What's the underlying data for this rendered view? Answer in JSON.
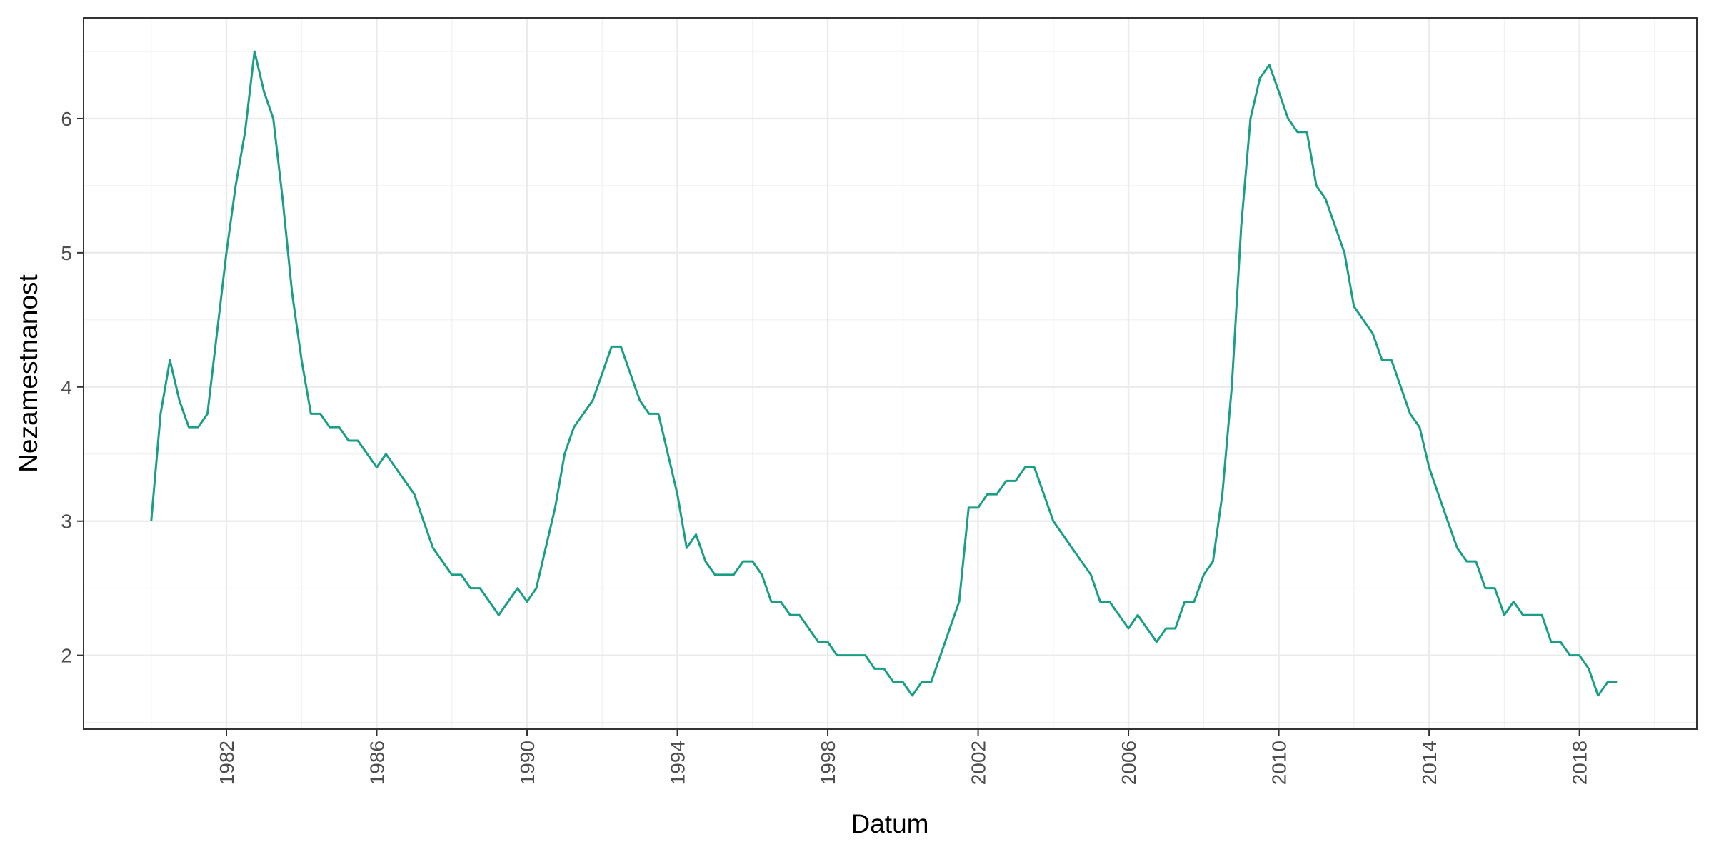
{
  "chart_data": {
    "type": "line",
    "xlabel": "Datum",
    "ylabel": "Nezamestnanost",
    "x_tick_labels": [
      "1982",
      "1986",
      "1990",
      "1994",
      "1998",
      "2002",
      "2006",
      "2010",
      "2014",
      "2018"
    ],
    "y_tick_labels": [
      "2",
      "3",
      "4",
      "5",
      "6"
    ],
    "xlim": [
      "1978-03-15",
      "2021-02-15"
    ],
    "ylim": [
      1.45,
      6.75
    ],
    "grid": true,
    "series": [
      {
        "color": "#1a9e85",
        "x": [
          "1980-01-01",
          "1980-04-01",
          "1980-07-01",
          "1980-10-01",
          "1981-01-01",
          "1981-04-01",
          "1981-07-01",
          "1981-10-01",
          "1982-01-01",
          "1982-04-01",
          "1982-07-01",
          "1982-10-01",
          "1983-01-01",
          "1983-04-01",
          "1983-07-01",
          "1983-10-01",
          "1984-01-01",
          "1984-04-01",
          "1984-07-01",
          "1984-10-01",
          "1985-01-01",
          "1985-04-01",
          "1985-07-01",
          "1985-10-01",
          "1986-01-01",
          "1986-04-01",
          "1986-07-01",
          "1986-10-01",
          "1987-01-01",
          "1987-04-01",
          "1987-07-01",
          "1987-10-01",
          "1988-01-01",
          "1988-04-01",
          "1988-07-01",
          "1988-10-01",
          "1989-01-01",
          "1989-04-01",
          "1989-07-01",
          "1989-10-01",
          "1990-01-01",
          "1990-04-01",
          "1990-07-01",
          "1990-10-01",
          "1991-01-01",
          "1991-04-01",
          "1991-07-01",
          "1991-10-01",
          "1992-01-01",
          "1992-04-01",
          "1992-07-01",
          "1992-10-01",
          "1993-01-01",
          "1993-04-01",
          "1993-07-01",
          "1993-10-01",
          "1994-01-01",
          "1994-04-01",
          "1994-07-01",
          "1994-10-01",
          "1995-01-01",
          "1995-04-01",
          "1995-07-01",
          "1995-10-01",
          "1996-01-01",
          "1996-04-01",
          "1996-07-01",
          "1996-10-01",
          "1997-01-01",
          "1997-04-01",
          "1997-07-01",
          "1997-10-01",
          "1998-01-01",
          "1998-04-01",
          "1998-07-01",
          "1998-10-01",
          "1999-01-01",
          "1999-04-01",
          "1999-07-01",
          "1999-10-01",
          "2000-01-01",
          "2000-04-01",
          "2000-07-01",
          "2000-10-01",
          "2001-01-01",
          "2001-04-01",
          "2001-07-01",
          "2001-10-01",
          "2002-01-01",
          "2002-04-01",
          "2002-07-01",
          "2002-10-01",
          "2003-01-01",
          "2003-04-01",
          "2003-07-01",
          "2003-10-01",
          "2004-01-01",
          "2004-04-01",
          "2004-07-01",
          "2004-10-01",
          "2005-01-01",
          "2005-04-01",
          "2005-07-01",
          "2005-10-01",
          "2006-01-01",
          "2006-04-01",
          "2006-07-01",
          "2006-10-01",
          "2007-01-01",
          "2007-04-01",
          "2007-07-01",
          "2007-10-01",
          "2008-01-01",
          "2008-04-01",
          "2008-07-01",
          "2008-10-01",
          "2009-01-01",
          "2009-04-01",
          "2009-07-01",
          "2009-10-01",
          "2010-01-01",
          "2010-04-01",
          "2010-07-01",
          "2010-10-01",
          "2011-01-01",
          "2011-04-01",
          "2011-07-01",
          "2011-10-01",
          "2012-01-01",
          "2012-04-01",
          "2012-07-01",
          "2012-10-01",
          "2013-01-01",
          "2013-04-01",
          "2013-07-01",
          "2013-10-01",
          "2014-01-01",
          "2014-04-01",
          "2014-07-01",
          "2014-10-01",
          "2015-01-01",
          "2015-04-01",
          "2015-07-01",
          "2015-10-01",
          "2016-01-01",
          "2016-04-01",
          "2016-07-01",
          "2016-10-01",
          "2017-01-01",
          "2017-04-01",
          "2017-07-01",
          "2017-10-01",
          "2018-01-01",
          "2018-04-01",
          "2018-07-01",
          "2018-10-01",
          "2019-01-01"
        ],
        "y": [
          3.0,
          3.8,
          4.2,
          3.9,
          3.7,
          3.7,
          3.8,
          4.4,
          5.0,
          5.5,
          5.9,
          6.5,
          6.2,
          6.0,
          5.4,
          4.7,
          4.2,
          3.8,
          3.8,
          3.7,
          3.7,
          3.6,
          3.6,
          3.5,
          3.4,
          3.5,
          3.4,
          3.3,
          3.2,
          3.0,
          2.8,
          2.7,
          2.6,
          2.6,
          2.5,
          2.5,
          2.4,
          2.3,
          2.4,
          2.5,
          2.4,
          2.5,
          2.8,
          3.1,
          3.5,
          3.7,
          3.8,
          3.9,
          4.1,
          4.3,
          4.3,
          4.1,
          3.9,
          3.8,
          3.8,
          3.5,
          3.2,
          2.8,
          2.9,
          2.7,
          2.6,
          2.6,
          2.6,
          2.7,
          2.7,
          2.6,
          2.4,
          2.4,
          2.3,
          2.3,
          2.2,
          2.1,
          2.1,
          2.0,
          2.0,
          2.0,
          2.0,
          1.9,
          1.9,
          1.8,
          1.8,
          1.7,
          1.8,
          1.8,
          2.0,
          2.2,
          2.4,
          3.1,
          3.1,
          3.2,
          3.2,
          3.3,
          3.3,
          3.4,
          3.4,
          3.2,
          3.0,
          2.9,
          2.8,
          2.7,
          2.6,
          2.4,
          2.4,
          2.3,
          2.2,
          2.3,
          2.2,
          2.1,
          2.2,
          2.2,
          2.4,
          2.4,
          2.6,
          2.7,
          3.2,
          4.0,
          5.2,
          6.0,
          6.3,
          6.4,
          6.2,
          6.0,
          5.9,
          5.9,
          5.5,
          5.4,
          5.2,
          5.0,
          4.6,
          4.5,
          4.4,
          4.2,
          4.2,
          4.0,
          3.8,
          3.7,
          3.4,
          3.2,
          3.0,
          2.8,
          2.7,
          2.7,
          2.5,
          2.5,
          2.3,
          2.4,
          2.3,
          2.3,
          2.3,
          2.1,
          2.1,
          2.0,
          2.0,
          1.9,
          1.7,
          1.8,
          1.8
        ]
      }
    ]
  }
}
